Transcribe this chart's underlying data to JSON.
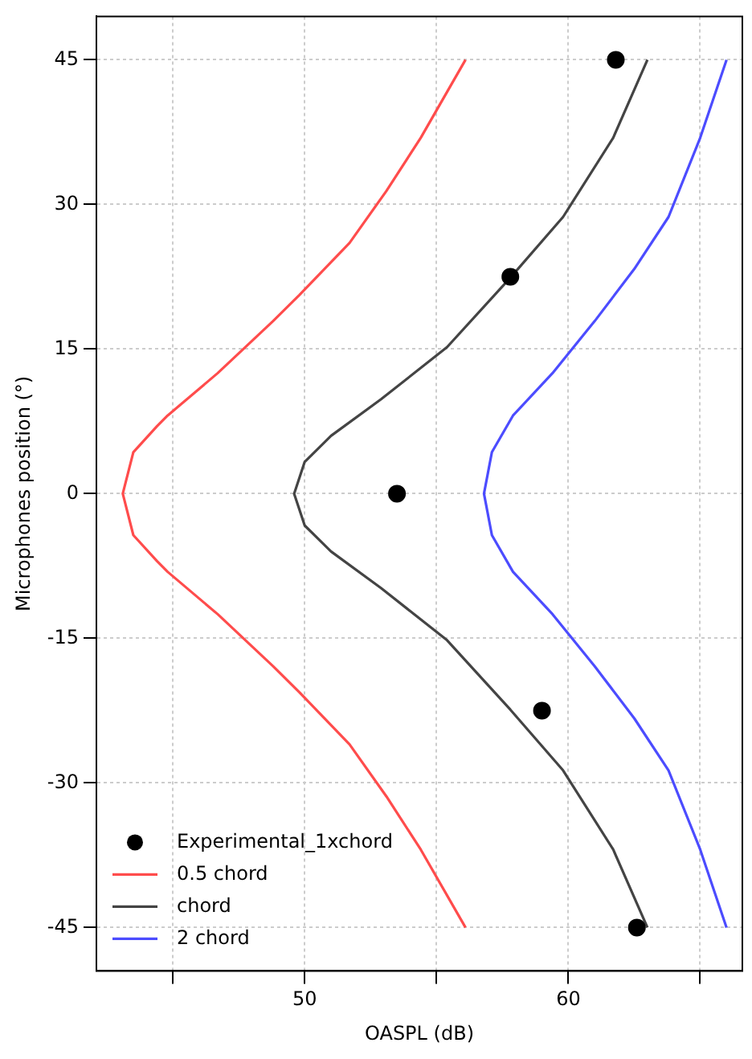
{
  "chart_data": {
    "type": "line",
    "xlabel": "OASPL (dB)",
    "ylabel": "Microphones position (°)",
    "xlim": [
      42.1,
      66.6
    ],
    "ylim": [
      -49.5,
      49.5
    ],
    "xticks": [
      {
        "value": 45,
        "label": null
      },
      50,
      {
        "value": 55,
        "label": null
      },
      60,
      {
        "value": 65,
        "label": null
      }
    ],
    "yticks": [
      -45,
      -30,
      -15,
      0,
      15,
      30,
      45
    ],
    "grid": true,
    "legend": "bottom left",
    "line_style": "solid",
    "series": [
      {
        "name": "Experimental_1xchord",
        "type": "scatter",
        "color": "#000000",
        "x": [
          61.8,
          57.8,
          53.5,
          59.0,
          62.6
        ],
        "values": [
          45,
          22.5,
          0,
          -22.5,
          -45
        ]
      },
      {
        "name": "0.5 chord",
        "color": "#ff4c4c",
        "x": [
          56.1,
          54.4,
          53.1,
          51.7,
          49.8,
          48.8,
          46.7,
          44.8,
          44.4,
          43.5,
          43.1,
          43.5,
          44.4,
          44.8,
          46.7,
          48.8,
          49.8,
          51.7,
          53.1,
          54.4,
          56.1
        ],
        "values": [
          45,
          36.9,
          31.4,
          26.0,
          20.6,
          17.9,
          12.5,
          8.1,
          7.0,
          4.3,
          0,
          -4.3,
          -7.0,
          -8.1,
          -12.5,
          -17.9,
          -20.6,
          -26.0,
          -31.4,
          -36.9,
          -45
        ]
      },
      {
        "name": "chord",
        "color": "#444444",
        "x": [
          63.0,
          61.7,
          59.8,
          57.8,
          55.4,
          52.9,
          51.0,
          50.0,
          49.6,
          50.0,
          51.0,
          52.9,
          55.4,
          57.8,
          59.8,
          61.7,
          63.0
        ],
        "values": [
          45,
          36.9,
          28.7,
          22.4,
          15.2,
          9.8,
          6.0,
          3.3,
          0,
          -3.3,
          -6.0,
          -9.8,
          -15.2,
          -22.4,
          -28.7,
          -36.9,
          -45
        ]
      },
      {
        "name": "2 chord",
        "color": "#4c4cff",
        "x": [
          66.0,
          65.0,
          63.8,
          62.5,
          61.0,
          59.4,
          57.9,
          57.1,
          56.8,
          57.1,
          57.9,
          59.4,
          61.0,
          62.5,
          63.8,
          65.0,
          66.0
        ],
        "values": [
          45,
          36.9,
          28.7,
          23.3,
          17.9,
          12.5,
          8.1,
          4.3,
          0,
          -4.3,
          -8.1,
          -12.5,
          -17.9,
          -23.3,
          -28.7,
          -36.9,
          -45
        ]
      }
    ]
  }
}
